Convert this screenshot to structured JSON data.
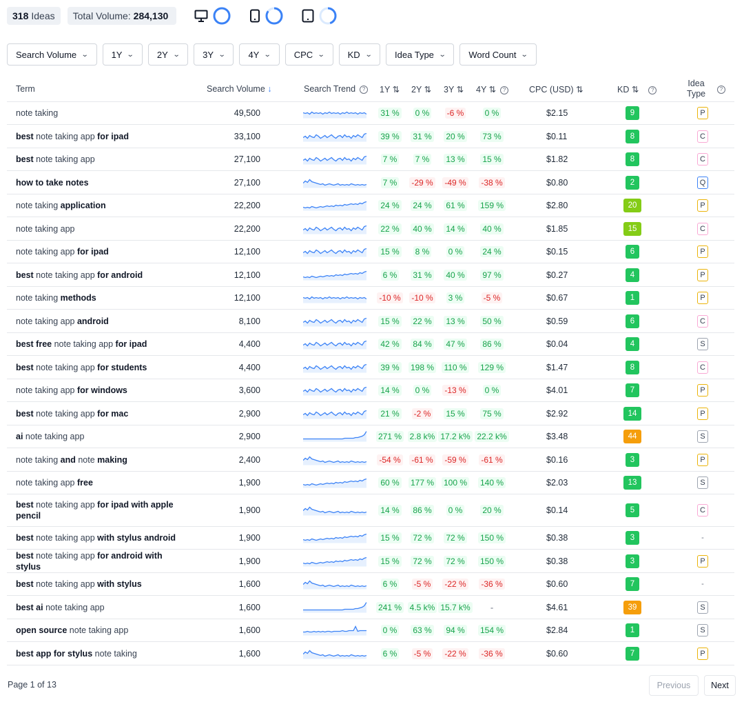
{
  "summary": {
    "ideas_count": "318",
    "ideas_label": "Ideas",
    "volume_label": "Total Volume:",
    "volume_value": "284,130"
  },
  "devices": [
    {
      "name": "desktop",
      "icon": "monitor-icon",
      "share": 1.0
    },
    {
      "name": "mobile",
      "icon": "phone-icon",
      "share": 0.85
    },
    {
      "name": "tablet",
      "icon": "tablet-icon",
      "share": 0.45
    }
  ],
  "filters": [
    "Search Volume",
    "1Y",
    "2Y",
    "3Y",
    "4Y",
    "CPC",
    "KD",
    "Idea Type",
    "Word Count"
  ],
  "columns": {
    "term": "Term",
    "volume": "Search Volume",
    "trend": "Search Trend",
    "y1": "1Y",
    "y2": "2Y",
    "y3": "3Y",
    "y4": "4Y",
    "cpc": "CPC (USD)",
    "kd": "KD",
    "idea_type_1": "Idea",
    "idea_type_2": "Type"
  },
  "rows": [
    {
      "term": [
        [
          "note taking",
          0
        ]
      ],
      "volume": "49,500",
      "trend": "flat",
      "y1": "31 %",
      "y2": "0 %",
      "y3": "-6 %",
      "y4": "0 %",
      "cpc": "$2.15",
      "kd": "9",
      "type": "P"
    },
    {
      "term": [
        [
          "best",
          1
        ],
        [
          " note taking app ",
          0
        ],
        [
          "for ipad",
          1
        ]
      ],
      "volume": "33,100",
      "trend": "wavy",
      "y1": "39 %",
      "y2": "31 %",
      "y3": "20 %",
      "y4": "73 %",
      "cpc": "$0.11",
      "kd": "8",
      "type": "C"
    },
    {
      "term": [
        [
          "best",
          1
        ],
        [
          " note taking app",
          0
        ]
      ],
      "volume": "27,100",
      "trend": "wavy",
      "y1": "7 %",
      "y2": "7 %",
      "y3": "13 %",
      "y4": "15 %",
      "cpc": "$1.82",
      "kd": "8",
      "type": "C"
    },
    {
      "term": [
        [
          "how to take notes",
          1
        ]
      ],
      "volume": "27,100",
      "trend": "down",
      "y1": "7 %",
      "y2": "-29 %",
      "y3": "-49 %",
      "y4": "-38 %",
      "cpc": "$0.80",
      "kd": "2",
      "type": "Q"
    },
    {
      "term": [
        [
          "note taking ",
          0
        ],
        [
          "application",
          1
        ]
      ],
      "volume": "22,200",
      "trend": "up",
      "y1": "24 %",
      "y2": "24 %",
      "y3": "61 %",
      "y4": "159 %",
      "cpc": "$2.80",
      "kd": "20",
      "type": "P"
    },
    {
      "term": [
        [
          "note taking app",
          0
        ]
      ],
      "volume": "22,200",
      "trend": "wavy",
      "y1": "22 %",
      "y2": "40 %",
      "y3": "14 %",
      "y4": "40 %",
      "cpc": "$1.85",
      "kd": "15",
      "type": "C"
    },
    {
      "term": [
        [
          "note taking app ",
          0
        ],
        [
          "for ipad",
          1
        ]
      ],
      "volume": "12,100",
      "trend": "wavy",
      "y1": "15 %",
      "y2": "8 %",
      "y3": "0 %",
      "y4": "24 %",
      "cpc": "$0.15",
      "kd": "6",
      "type": "P"
    },
    {
      "term": [
        [
          "best",
          1
        ],
        [
          " note taking app ",
          0
        ],
        [
          "for android",
          1
        ]
      ],
      "volume": "12,100",
      "trend": "up",
      "y1": "6 %",
      "y2": "31 %",
      "y3": "40 %",
      "y4": "97 %",
      "cpc": "$0.27",
      "kd": "4",
      "type": "P"
    },
    {
      "term": [
        [
          "note taking ",
          0
        ],
        [
          "methods",
          1
        ]
      ],
      "volume": "12,100",
      "trend": "flat",
      "y1": "-10 %",
      "y2": "-10 %",
      "y3": "3 %",
      "y4": "-5 %",
      "cpc": "$0.67",
      "kd": "1",
      "type": "P"
    },
    {
      "term": [
        [
          "note taking app ",
          0
        ],
        [
          "android",
          1
        ]
      ],
      "volume": "8,100",
      "trend": "wavy",
      "y1": "15 %",
      "y2": "22 %",
      "y3": "13 %",
      "y4": "50 %",
      "cpc": "$0.59",
      "kd": "6",
      "type": "C"
    },
    {
      "term": [
        [
          "best free",
          1
        ],
        [
          " note taking app ",
          0
        ],
        [
          "for ipad",
          1
        ]
      ],
      "volume": "4,400",
      "trend": "wavy",
      "y1": "42 %",
      "y2": "84 %",
      "y3": "47 %",
      "y4": "86 %",
      "cpc": "$0.04",
      "kd": "4",
      "type": "S"
    },
    {
      "term": [
        [
          "best",
          1
        ],
        [
          " note taking app ",
          0
        ],
        [
          "for students",
          1
        ]
      ],
      "volume": "4,400",
      "trend": "wavy",
      "y1": "39 %",
      "y2": "198 %",
      "y3": "110 %",
      "y4": "129 %",
      "cpc": "$1.47",
      "kd": "8",
      "type": "C"
    },
    {
      "term": [
        [
          "note taking app ",
          0
        ],
        [
          "for windows",
          1
        ]
      ],
      "volume": "3,600",
      "trend": "wavy",
      "y1": "14 %",
      "y2": "0 %",
      "y3": "-13 %",
      "y4": "0 %",
      "cpc": "$4.01",
      "kd": "7",
      "type": "P"
    },
    {
      "term": [
        [
          "best",
          1
        ],
        [
          " note taking app ",
          0
        ],
        [
          "for mac",
          1
        ]
      ],
      "volume": "2,900",
      "trend": "wavy",
      "y1": "21 %",
      "y2": "-2 %",
      "y3": "15 %",
      "y4": "75 %",
      "cpc": "$2.92",
      "kd": "14",
      "type": "P"
    },
    {
      "term": [
        [
          "ai",
          1
        ],
        [
          " note taking app",
          0
        ]
      ],
      "volume": "2,900",
      "trend": "spike",
      "y1": "271 %",
      "y2": "2.8 k%",
      "y3": "17.2 k%",
      "y4": "22.2 k%",
      "cpc": "$3.48",
      "kd": "44",
      "type": "S"
    },
    {
      "term": [
        [
          "note taking ",
          0
        ],
        [
          "and",
          1
        ],
        [
          " note ",
          0
        ],
        [
          "making",
          1
        ]
      ],
      "volume": "2,400",
      "trend": "down",
      "y1": "-54 %",
      "y2": "-61 %",
      "y3": "-59 %",
      "y4": "-61 %",
      "cpc": "$0.16",
      "kd": "3",
      "type": "P"
    },
    {
      "term": [
        [
          "note taking app ",
          0
        ],
        [
          "free",
          1
        ]
      ],
      "volume": "1,900",
      "trend": "up",
      "y1": "60 %",
      "y2": "177 %",
      "y3": "100 %",
      "y4": "140 %",
      "cpc": "$2.03",
      "kd": "13",
      "type": "S"
    },
    {
      "term": [
        [
          "best",
          1
        ],
        [
          " note taking app ",
          0
        ],
        [
          "for ipad with apple pencil",
          1
        ]
      ],
      "volume": "1,900",
      "trend": "down",
      "y1": "14 %",
      "y2": "86 %",
      "y3": "0 %",
      "y4": "20 %",
      "cpc": "$0.14",
      "kd": "5",
      "type": "C"
    },
    {
      "term": [
        [
          "best",
          1
        ],
        [
          " note taking app ",
          0
        ],
        [
          "with stylus android",
          1
        ]
      ],
      "volume": "1,900",
      "trend": "up",
      "y1": "15 %",
      "y2": "72 %",
      "y3": "72 %",
      "y4": "150 %",
      "cpc": "$0.38",
      "kd": "3",
      "type": "-"
    },
    {
      "term": [
        [
          "best",
          1
        ],
        [
          " note taking app ",
          0
        ],
        [
          "for android with stylus",
          1
        ]
      ],
      "volume": "1,900",
      "trend": "up",
      "y1": "15 %",
      "y2": "72 %",
      "y3": "72 %",
      "y4": "150 %",
      "cpc": "$0.38",
      "kd": "3",
      "type": "P"
    },
    {
      "term": [
        [
          "best",
          1
        ],
        [
          " note taking app ",
          0
        ],
        [
          "with stylus",
          1
        ]
      ],
      "volume": "1,600",
      "trend": "down",
      "y1": "6 %",
      "y2": "-5 %",
      "y3": "-22 %",
      "y4": "-36 %",
      "cpc": "$0.60",
      "kd": "7",
      "type": "-"
    },
    {
      "term": [
        [
          "best ai",
          1
        ],
        [
          " note taking app",
          0
        ]
      ],
      "volume": "1,600",
      "trend": "spike",
      "y1": "241 %",
      "y2": "4.5 k%",
      "y3": "15.7 k%",
      "y4": "-",
      "cpc": "$4.61",
      "kd": "39",
      "type": "S"
    },
    {
      "term": [
        [
          "open source",
          1
        ],
        [
          " note taking app",
          0
        ]
      ],
      "volume": "1,600",
      "trend": "bump",
      "y1": "0 %",
      "y2": "63 %",
      "y3": "94 %",
      "y4": "154 %",
      "cpc": "$2.84",
      "kd": "1",
      "type": "S"
    },
    {
      "term": [
        [
          "best",
          1
        ],
        [
          " ",
          0
        ],
        [
          "app for stylus",
          1
        ],
        [
          " note taking",
          0
        ]
      ],
      "volume": "1,600",
      "trend": "down",
      "y1": "6 %",
      "y2": "-5 %",
      "y3": "-22 %",
      "y4": "-36 %",
      "cpc": "$0.60",
      "kd": "7",
      "type": "P"
    }
  ],
  "pagination": {
    "page_label": "Page 1 of 13",
    "previous": "Previous",
    "next": "Next"
  },
  "colors": {
    "kd_easy": "#22c55e",
    "kd_mid": "#84cc16",
    "kd_hard": "#f59e0b",
    "spark": "#3b82f6"
  }
}
